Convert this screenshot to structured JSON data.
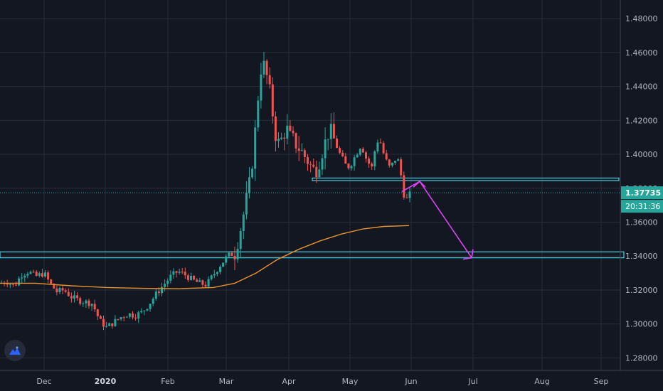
{
  "chart_data": {
    "type": "candlestick",
    "x_ticks": [
      "Dec",
      "2020",
      "Feb",
      "Mar",
      "Apr",
      "May",
      "Jun",
      "Jul",
      "Aug",
      "Sep"
    ],
    "y_ticks": [
      "1.48000",
      "1.46000",
      "1.44000",
      "1.42000",
      "1.40000",
      "1.38000",
      "1.36000",
      "1.34000",
      "1.32000",
      "1.30000",
      "1.28000"
    ],
    "ylim": [
      1.276,
      1.488
    ],
    "last_price": "1.37735",
    "countdown": "20:31:36",
    "price_points": [
      [
        0,
        1.324
      ],
      [
        10,
        1.325
      ],
      [
        20,
        1.322
      ],
      [
        30,
        1.329
      ],
      [
        40,
        1.331
      ],
      [
        50,
        1.328
      ],
      [
        62,
        1.33
      ],
      [
        70,
        1.324
      ],
      [
        80,
        1.319
      ],
      [
        90,
        1.32
      ],
      [
        100,
        1.316
      ],
      [
        110,
        1.314
      ],
      [
        120,
        1.313
      ],
      [
        130,
        1.312
      ],
      [
        140,
        1.302
      ],
      [
        150,
        1.298
      ],
      [
        160,
        1.301
      ],
      [
        170,
        1.304
      ],
      [
        180,
        1.306
      ],
      [
        190,
        1.305
      ],
      [
        200,
        1.307
      ],
      [
        210,
        1.312
      ],
      [
        220,
        1.318
      ],
      [
        230,
        1.323
      ],
      [
        240,
        1.328
      ],
      [
        250,
        1.331
      ],
      [
        260,
        1.329
      ],
      [
        270,
        1.326
      ],
      [
        280,
        1.324
      ],
      [
        290,
        1.323
      ],
      [
        300,
        1.329
      ],
      [
        310,
        1.335
      ],
      [
        320,
        1.34
      ],
      [
        330,
        1.342
      ],
      [
        338,
        1.356
      ],
      [
        345,
        1.37
      ],
      [
        352,
        1.385
      ],
      [
        358,
        1.41
      ],
      [
        363,
        1.435
      ],
      [
        368,
        1.455
      ],
      [
        373,
        1.45
      ],
      [
        378,
        1.44
      ],
      [
        383,
        1.425
      ],
      [
        388,
        1.41
      ],
      [
        393,
        1.405
      ],
      [
        398,
        1.412
      ],
      [
        403,
        1.415
      ],
      [
        408,
        1.41
      ],
      [
        413,
        1.408
      ],
      [
        418,
        1.405
      ],
      [
        423,
        1.402
      ],
      [
        428,
        1.399
      ],
      [
        433,
        1.396
      ],
      [
        438,
        1.392
      ],
      [
        443,
        1.39
      ],
      [
        448,
        1.395
      ],
      [
        453,
        1.402
      ],
      [
        458,
        1.408
      ],
      [
        463,
        1.415
      ],
      [
        468,
        1.41
      ],
      [
        473,
        1.405
      ],
      [
        478,
        1.4
      ],
      [
        483,
        1.396
      ],
      [
        488,
        1.392
      ],
      [
        493,
        1.394
      ],
      [
        498,
        1.398
      ],
      [
        503,
        1.402
      ],
      [
        508,
        1.406
      ],
      [
        513,
        1.399
      ],
      [
        518,
        1.395
      ],
      [
        523,
        1.392
      ],
      [
        528,
        1.405
      ],
      [
        533,
        1.41
      ],
      [
        538,
        1.402
      ],
      [
        543,
        1.396
      ],
      [
        548,
        1.392
      ],
      [
        553,
        1.395
      ],
      [
        558,
        1.399
      ],
      [
        563,
        1.39
      ],
      [
        566,
        1.38
      ],
      [
        570,
        1.372
      ],
      [
        575,
        1.376
      ],
      [
        580,
        1.377
      ]
    ],
    "moving_average": [
      [
        0,
        1.324
      ],
      [
        50,
        1.324
      ],
      [
        100,
        1.3225
      ],
      [
        150,
        1.3215
      ],
      [
        200,
        1.321
      ],
      [
        250,
        1.3208
      ],
      [
        300,
        1.3215
      ],
      [
        330,
        1.324
      ],
      [
        360,
        1.33
      ],
      [
        390,
        1.338
      ],
      [
        420,
        1.344
      ],
      [
        450,
        1.349
      ],
      [
        480,
        1.353
      ],
      [
        510,
        1.356
      ],
      [
        540,
        1.3575
      ],
      [
        575,
        1.358
      ]
    ],
    "levels": [
      {
        "type": "support",
        "y1": 1.339,
        "y2": 1.3425
      },
      {
        "type": "resistance",
        "y1": 1.3845,
        "y2": 1.386
      }
    ],
    "arrow": [
      [
        565,
        1.378
      ],
      [
        590,
        1.384
      ],
      [
        663,
        1.339
      ]
    ],
    "colors": {
      "up": "#26a69a",
      "down": "#ef5350",
      "ma": "#e8922c",
      "level": "#4dd0e1",
      "arrow": "#e040fb",
      "grid": "#2a2e39",
      "last_price_bg": "#26a69a"
    }
  }
}
